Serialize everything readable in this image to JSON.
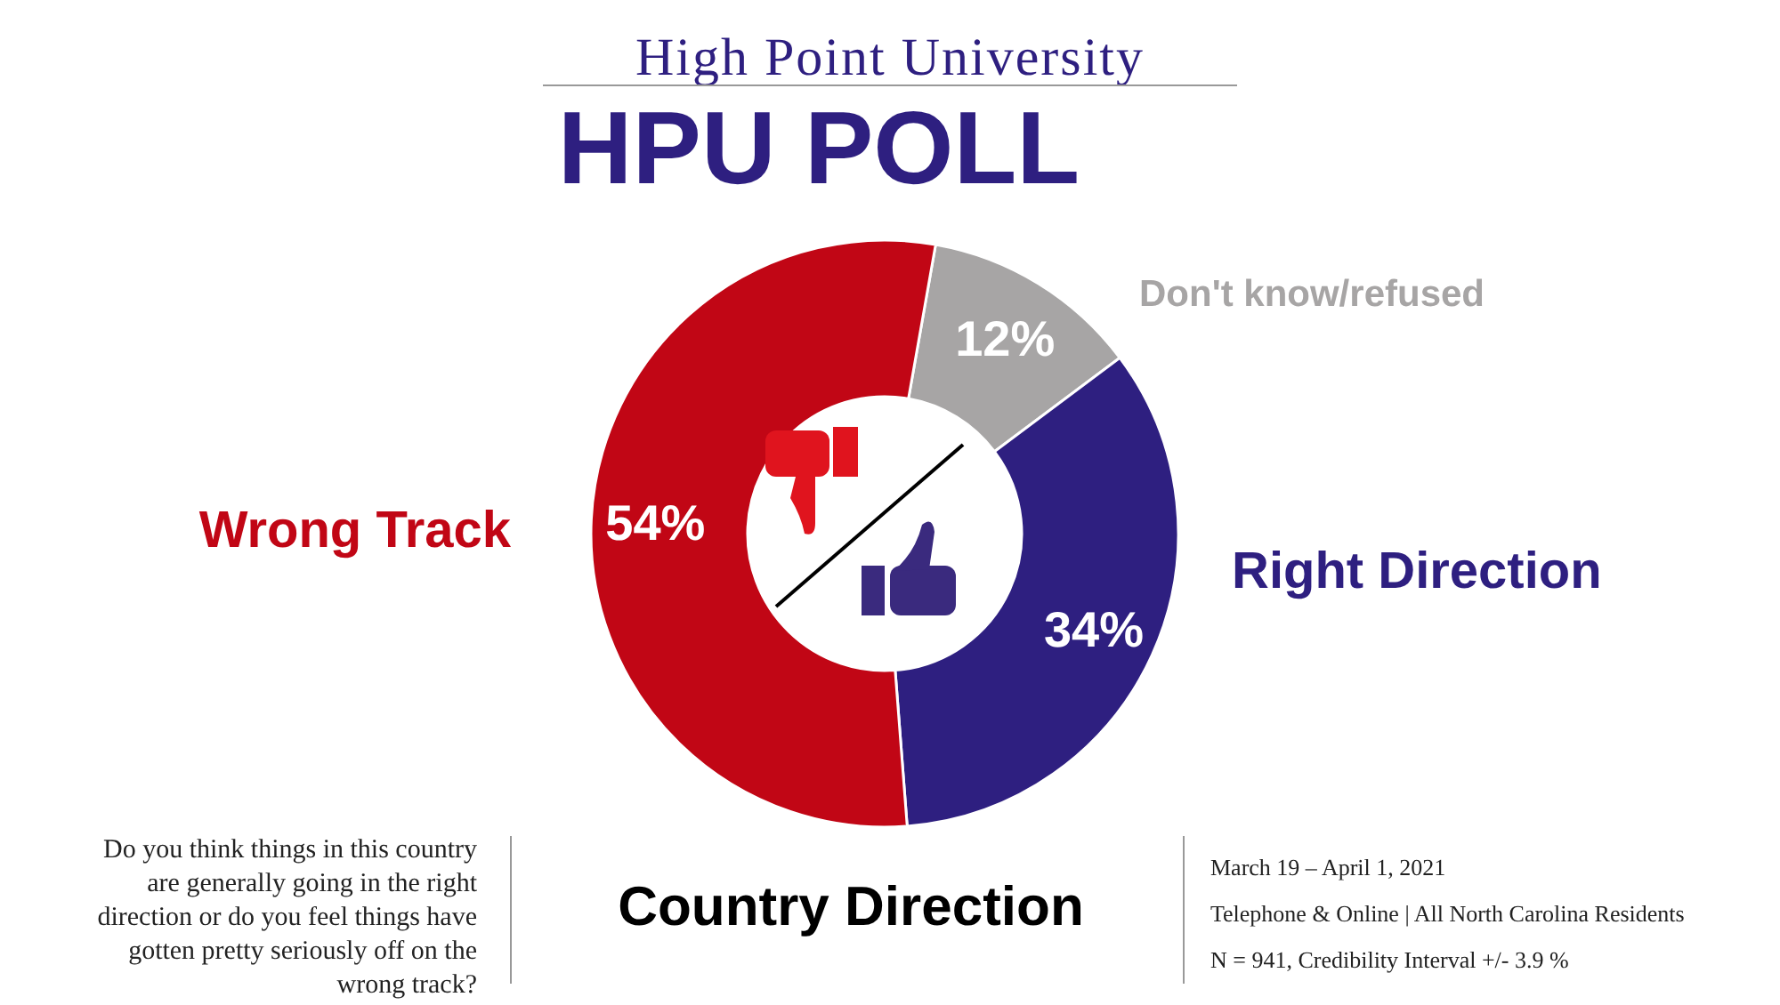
{
  "chart_data": {
    "type": "donut",
    "title": "Country Direction",
    "categories": [
      "Don't know/refused",
      "Right Direction",
      "Wrong Track"
    ],
    "values": [
      12,
      34,
      54
    ],
    "colors": [
      "#a7a5a5",
      "#2e1f80",
      "#c10615"
    ],
    "value_labels": [
      "12%",
      "34%",
      "54%"
    ],
    "legend": false,
    "annotations": [
      "High Point University",
      "HPU POLL",
      "Do you think things in this country are generally going in the right direction or do you feel things have gotten pretty seriously off on the wrong track?",
      "March 19 – April 1, 2021",
      "Telephone & Online | All North Carolina Residents",
      "N = 941, Credibility Interval +/- 3.9 %"
    ]
  }
}
